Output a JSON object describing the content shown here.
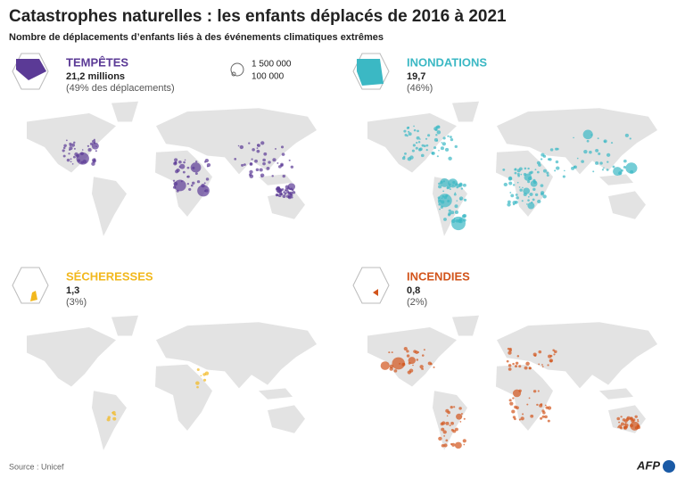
{
  "header": {
    "title": "Catastrophes naturelles : les enfants déplacés de 2016 à 2021",
    "subtitle": "Nombre de déplacements d’enfants liés à des événements climatiques extrêmes"
  },
  "size_legend": [
    "1 500 000",
    "100 000"
  ],
  "panels": [
    {
      "name": "TEMPÊTES",
      "value": "21,2 millions",
      "share": "(49% des déplacements)",
      "color": "#5b3a96"
    },
    {
      "name": "INONDATIONS",
      "value": "19,7",
      "share": "(46%)",
      "color": "#3bb8c4"
    },
    {
      "name": "SÉCHERESSES",
      "value": "1,3",
      "share": "(3%)",
      "color": "#f2b81e"
    },
    {
      "name": "INCENDIES",
      "value": "0,8",
      "share": "(2%)",
      "color": "#d2541b"
    }
  ],
  "source": "Source : Unicef",
  "logo": "AFP"
}
